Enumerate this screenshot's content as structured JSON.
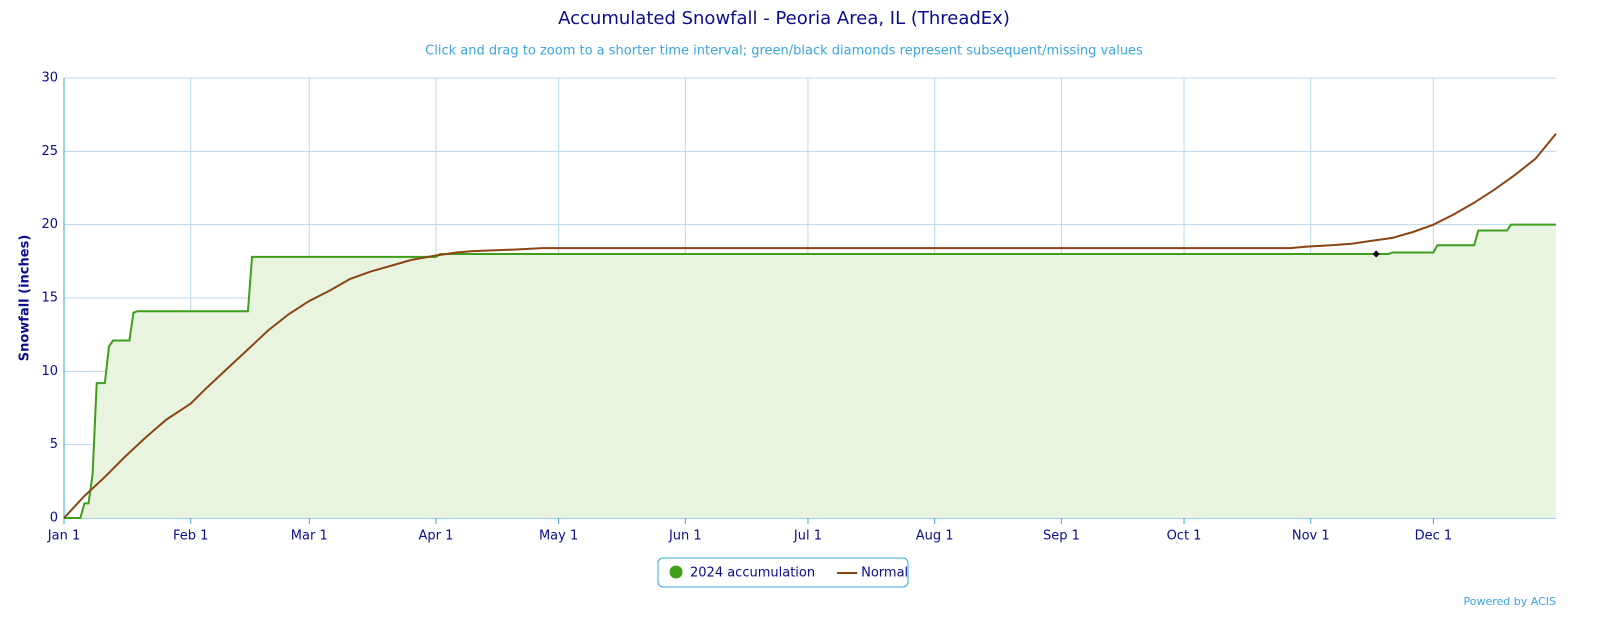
{
  "chart_data": {
    "type": "line",
    "title": "Accumulated Snowfall - Peoria Area, IL (ThreadEx)",
    "subtitle": "Click and drag to zoom to a shorter time interval; green/black diamonds represent subsequent/missing values",
    "y_label": "Snowfall (inches)",
    "credit": "Powered by ACIS",
    "xlim": [
      0,
      365
    ],
    "xticks": [
      {
        "value": 0,
        "label": "Jan 1"
      },
      {
        "value": 31,
        "label": "Feb 1"
      },
      {
        "value": 60,
        "label": "Mar 1"
      },
      {
        "value": 91,
        "label": "Apr 1"
      },
      {
        "value": 121,
        "label": "May 1"
      },
      {
        "value": 152,
        "label": "Jun 1"
      },
      {
        "value": 182,
        "label": "Jul 1"
      },
      {
        "value": 213,
        "label": "Aug 1"
      },
      {
        "value": 244,
        "label": "Sep 1"
      },
      {
        "value": 274,
        "label": "Oct 1"
      },
      {
        "value": 305,
        "label": "Nov 1"
      },
      {
        "value": 335,
        "label": "Dec 1"
      }
    ],
    "ylim": [
      0,
      30
    ],
    "yticks": [
      0,
      5,
      10,
      15,
      20,
      25,
      30
    ],
    "grid": true,
    "series": [
      {
        "name": "2024 accumulation",
        "color": "#3f9e1c",
        "fill_color": "#e8f4e0",
        "legend_symbol": "circle",
        "x": [
          0,
          4,
          5,
          6,
          7,
          8,
          10,
          11,
          12,
          16,
          17,
          18,
          45,
          46,
          91,
          92,
          324,
          325,
          335,
          336,
          345,
          346,
          353,
          354,
          365
        ],
        "values": [
          0,
          0,
          1,
          1,
          3,
          9.2,
          9.2,
          11.7,
          12.1,
          12.1,
          14.0,
          14.1,
          14.1,
          17.8,
          17.8,
          18.0,
          18.0,
          18.1,
          18.1,
          18.6,
          18.6,
          19.6,
          19.6,
          20.0,
          20.0
        ]
      },
      {
        "name": "Normal",
        "color": "#8b4513",
        "legend_symbol": "line",
        "x": [
          0,
          5,
          10,
          15,
          20,
          25,
          31,
          35,
          40,
          45,
          50,
          55,
          60,
          65,
          70,
          75,
          80,
          85,
          91,
          96,
          100,
          110,
          117,
          300,
          304,
          310,
          315,
          320,
          325,
          330,
          335,
          340,
          345,
          350,
          355,
          360,
          365
        ],
        "values": [
          0,
          1.5,
          2.8,
          4.2,
          5.5,
          6.7,
          7.8,
          8.9,
          10.2,
          11.5,
          12.8,
          13.9,
          14.8,
          15.5,
          16.3,
          16.8,
          17.2,
          17.6,
          17.9,
          18.1,
          18.2,
          18.3,
          18.4,
          18.4,
          18.5,
          18.6,
          18.7,
          18.9,
          19.1,
          19.5,
          20.0,
          20.7,
          21.5,
          22.4,
          23.4,
          24.5,
          26.2
        ]
      }
    ],
    "markers": [
      {
        "x": 321,
        "value": 18.0,
        "color": "#000000"
      }
    ]
  }
}
